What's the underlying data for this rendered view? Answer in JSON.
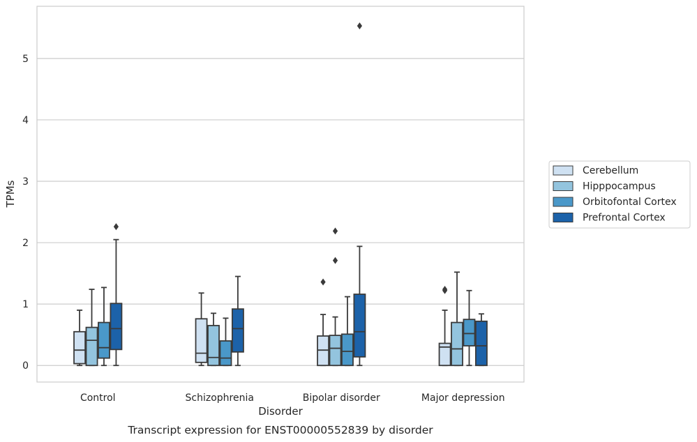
{
  "caption": "Transcript expression for ENST00000552839 by disorder",
  "chart_data": {
    "type": "box",
    "xlabel": "Disorder",
    "ylabel": "TPMs",
    "ylim": [
      -0.27,
      5.85
    ],
    "yticks": [
      0,
      1,
      2,
      3,
      4,
      5
    ],
    "ytick_labels": [
      "0",
      "1",
      "2",
      "3",
      "4",
      "5"
    ],
    "grid": "horizontal",
    "legend_position": "right",
    "categories": [
      "Control",
      "Schizophrenia",
      "Bipolar disorder",
      "Major depression"
    ],
    "series": [
      {
        "name": "Cerebellum",
        "color": "#cfe1f2",
        "boxes": [
          {
            "whislo": 0.0,
            "q1": 0.03,
            "med": 0.25,
            "q3": 0.55,
            "whishi": 0.9,
            "fliers": []
          },
          {
            "whislo": 0.0,
            "q1": 0.05,
            "med": 0.2,
            "q3": 0.76,
            "whishi": 1.18,
            "fliers": []
          },
          {
            "whislo": 0.0,
            "q1": 0.0,
            "med": 0.25,
            "q3": 0.48,
            "whishi": 0.83,
            "fliers": [
              1.36
            ]
          },
          {
            "whislo": 0.0,
            "q1": 0.0,
            "med": 0.3,
            "q3": 0.36,
            "whishi": 0.9,
            "fliers": [
              1.22,
              1.24
            ]
          }
        ]
      },
      {
        "name": "Hipppocampus",
        "color": "#93c4de",
        "boxes": [
          {
            "whislo": 0.0,
            "q1": 0.0,
            "med": 0.41,
            "q3": 0.62,
            "whishi": 1.24,
            "fliers": []
          },
          {
            "whislo": 0.0,
            "q1": 0.0,
            "med": 0.13,
            "q3": 0.65,
            "whishi": 0.85,
            "fliers": []
          },
          {
            "whislo": 0.0,
            "q1": 0.0,
            "med": 0.28,
            "q3": 0.49,
            "whishi": 0.79,
            "fliers": [
              1.71,
              2.19
            ]
          },
          {
            "whislo": 0.0,
            "q1": 0.0,
            "med": 0.27,
            "q3": 0.7,
            "whishi": 1.52,
            "fliers": []
          }
        ]
      },
      {
        "name": "Orbitofontal Cortex",
        "color": "#4a98c9",
        "boxes": [
          {
            "whislo": 0.0,
            "q1": 0.12,
            "med": 0.29,
            "q3": 0.7,
            "whishi": 1.27,
            "fliers": []
          },
          {
            "whislo": 0.0,
            "q1": 0.0,
            "med": 0.12,
            "q3": 0.4,
            "whishi": 0.77,
            "fliers": []
          },
          {
            "whislo": 0.0,
            "q1": 0.0,
            "med": 0.23,
            "q3": 0.51,
            "whishi": 1.12,
            "fliers": []
          },
          {
            "whislo": 0.0,
            "q1": 0.32,
            "med": 0.52,
            "q3": 0.75,
            "whishi": 1.22,
            "fliers": []
          }
        ]
      },
      {
        "name": "Prefrontal Cortex",
        "color": "#1c62a9",
        "boxes": [
          {
            "whislo": 0.0,
            "q1": 0.26,
            "med": 0.6,
            "q3": 1.01,
            "whishi": 2.05,
            "fliers": [
              2.26
            ]
          },
          {
            "whislo": 0.0,
            "q1": 0.22,
            "med": 0.6,
            "q3": 0.92,
            "whishi": 1.45,
            "fliers": []
          },
          {
            "whislo": 0.0,
            "q1": 0.14,
            "med": 0.55,
            "q3": 1.16,
            "whishi": 1.94,
            "fliers": [
              5.53
            ]
          },
          {
            "whislo": 0.0,
            "q1": 0.0,
            "med": 0.32,
            "q3": 0.72,
            "whishi": 0.84,
            "fliers": []
          }
        ]
      }
    ]
  }
}
